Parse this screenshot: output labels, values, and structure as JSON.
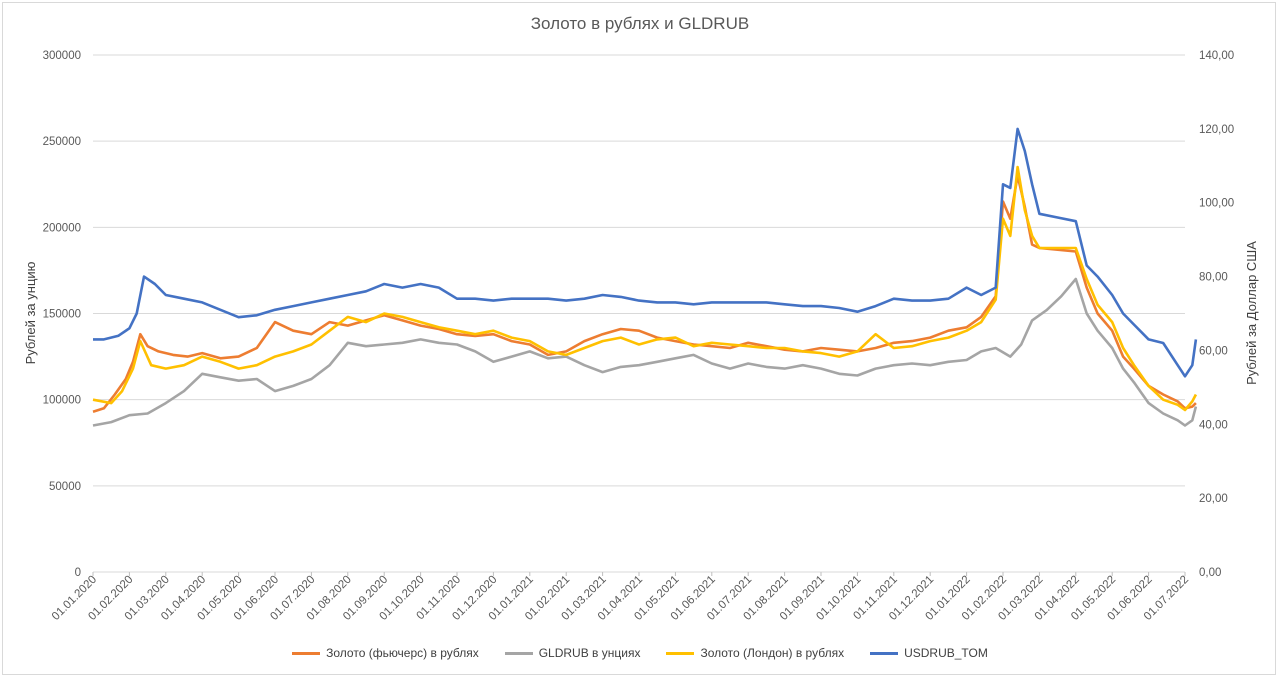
{
  "chart_data": {
    "type": "line",
    "title": "Золото в рублях и GLDRUB",
    "ylabel_left": "Рублей за унцию",
    "ylabel_right": "Рублей за Доллар США",
    "ylim_left": [
      0,
      300000
    ],
    "ylim_right": [
      0,
      140
    ],
    "left_ticks": [
      "0",
      "50000",
      "100000",
      "150000",
      "200000",
      "250000",
      "300000"
    ],
    "right_ticks": [
      "0,00",
      "20,00",
      "40,00",
      "60,00",
      "80,00",
      "100,00",
      "120,00",
      "140,00"
    ],
    "x_ticks": [
      "01.01.2020",
      "01.02.2020",
      "01.03.2020",
      "01.04.2020",
      "01.05.2020",
      "01.06.2020",
      "01.07.2020",
      "01.08.2020",
      "01.09.2020",
      "01.10.2020",
      "01.11.2020",
      "01.12.2020",
      "01.01.2021",
      "01.02.2021",
      "01.03.2021",
      "01.04.2021",
      "01.05.2021",
      "01.06.2021",
      "01.07.2021",
      "01.08.2021",
      "01.09.2021",
      "01.10.2021",
      "01.11.2021",
      "01.12.2021",
      "01.01.2022",
      "01.02.2022",
      "01.03.2022",
      "01.04.2022",
      "01.05.2022",
      "01.06.2022",
      "01.07.2022"
    ],
    "grid": "horizontal",
    "legend_position": "bottom",
    "series": [
      {
        "name": "Золото (фьючерс) в рублях",
        "axis": "left",
        "color": "#ED7D31",
        "points": [
          [
            0,
            93000
          ],
          [
            0.3,
            95000
          ],
          [
            0.6,
            103000
          ],
          [
            0.9,
            112000
          ],
          [
            1.1,
            122000
          ],
          [
            1.3,
            138000
          ],
          [
            1.5,
            131000
          ],
          [
            1.8,
            128000
          ],
          [
            2.2,
            126000
          ],
          [
            2.6,
            125000
          ],
          [
            3.0,
            127000
          ],
          [
            3.5,
            124000
          ],
          [
            4.0,
            125000
          ],
          [
            4.5,
            130000
          ],
          [
            5.0,
            145000
          ],
          [
            5.5,
            140000
          ],
          [
            6.0,
            138000
          ],
          [
            6.5,
            145000
          ],
          [
            7.0,
            143000
          ],
          [
            7.5,
            146000
          ],
          [
            8.0,
            149000
          ],
          [
            8.5,
            146000
          ],
          [
            9.0,
            143000
          ],
          [
            9.5,
            141000
          ],
          [
            10.0,
            138000
          ],
          [
            10.5,
            137000
          ],
          [
            11.0,
            138000
          ],
          [
            11.5,
            134000
          ],
          [
            12.0,
            132000
          ],
          [
            12.5,
            126000
          ],
          [
            13.0,
            128000
          ],
          [
            13.5,
            134000
          ],
          [
            14.0,
            138000
          ],
          [
            14.5,
            141000
          ],
          [
            15.0,
            140000
          ],
          [
            15.5,
            136000
          ],
          [
            16.0,
            134000
          ],
          [
            16.5,
            132000
          ],
          [
            17.0,
            131000
          ],
          [
            17.5,
            130000
          ],
          [
            18.0,
            133000
          ],
          [
            18.5,
            131000
          ],
          [
            19.0,
            129000
          ],
          [
            19.5,
            128000
          ],
          [
            20.0,
            130000
          ],
          [
            20.5,
            129000
          ],
          [
            21.0,
            128000
          ],
          [
            21.5,
            130000
          ],
          [
            22.0,
            133000
          ],
          [
            22.5,
            134000
          ],
          [
            23.0,
            136000
          ],
          [
            23.5,
            140000
          ],
          [
            24.0,
            142000
          ],
          [
            24.4,
            148000
          ],
          [
            24.8,
            160000
          ],
          [
            25.0,
            215000
          ],
          [
            25.2,
            205000
          ],
          [
            25.4,
            230000
          ],
          [
            25.6,
            212000
          ],
          [
            25.8,
            190000
          ],
          [
            26.0,
            188000
          ],
          [
            26.5,
            187000
          ],
          [
            27.0,
            186000
          ],
          [
            27.3,
            165000
          ],
          [
            27.6,
            150000
          ],
          [
            28.0,
            140000
          ],
          [
            28.3,
            125000
          ],
          [
            28.6,
            118000
          ],
          [
            29.0,
            108000
          ],
          [
            29.4,
            103000
          ],
          [
            29.8,
            99000
          ],
          [
            30.0,
            95000
          ],
          [
            30.2,
            96000
          ],
          [
            30.3,
            98000
          ]
        ]
      },
      {
        "name": "GLDRUB в унциях",
        "axis": "left",
        "color": "#A5A5A5",
        "points": [
          [
            0,
            85000
          ],
          [
            0.5,
            87000
          ],
          [
            1.0,
            91000
          ],
          [
            1.5,
            92000
          ],
          [
            2.0,
            98000
          ],
          [
            2.5,
            105000
          ],
          [
            3.0,
            115000
          ],
          [
            3.5,
            113000
          ],
          [
            4.0,
            111000
          ],
          [
            4.5,
            112000
          ],
          [
            5.0,
            105000
          ],
          [
            5.5,
            108000
          ],
          [
            6.0,
            112000
          ],
          [
            6.5,
            120000
          ],
          [
            7.0,
            133000
          ],
          [
            7.5,
            131000
          ],
          [
            8.0,
            132000
          ],
          [
            8.5,
            133000
          ],
          [
            9.0,
            135000
          ],
          [
            9.5,
            133000
          ],
          [
            10.0,
            132000
          ],
          [
            10.5,
            128000
          ],
          [
            11.0,
            122000
          ],
          [
            11.5,
            125000
          ],
          [
            12.0,
            128000
          ],
          [
            12.5,
            124000
          ],
          [
            13.0,
            125000
          ],
          [
            13.5,
            120000
          ],
          [
            14.0,
            116000
          ],
          [
            14.5,
            119000
          ],
          [
            15.0,
            120000
          ],
          [
            15.5,
            122000
          ],
          [
            16.0,
            124000
          ],
          [
            16.5,
            126000
          ],
          [
            17.0,
            121000
          ],
          [
            17.5,
            118000
          ],
          [
            18.0,
            121000
          ],
          [
            18.5,
            119000
          ],
          [
            19.0,
            118000
          ],
          [
            19.5,
            120000
          ],
          [
            20.0,
            118000
          ],
          [
            20.5,
            115000
          ],
          [
            21.0,
            114000
          ],
          [
            21.5,
            118000
          ],
          [
            22.0,
            120000
          ],
          [
            22.5,
            121000
          ],
          [
            23.0,
            120000
          ],
          [
            23.5,
            122000
          ],
          [
            24.0,
            123000
          ],
          [
            24.4,
            128000
          ],
          [
            24.8,
            130000
          ],
          [
            25.2,
            125000
          ],
          [
            25.5,
            132000
          ],
          [
            25.8,
            146000
          ],
          [
            26.2,
            152000
          ],
          [
            26.6,
            160000
          ],
          [
            27.0,
            170000
          ],
          [
            27.3,
            150000
          ],
          [
            27.6,
            140000
          ],
          [
            28.0,
            130000
          ],
          [
            28.3,
            118000
          ],
          [
            28.6,
            110000
          ],
          [
            29.0,
            98000
          ],
          [
            29.4,
            92000
          ],
          [
            29.8,
            88000
          ],
          [
            30.0,
            85000
          ],
          [
            30.2,
            88000
          ],
          [
            30.3,
            96000
          ]
        ]
      },
      {
        "name": "Золото (Лондон) в рублях",
        "axis": "left",
        "color": "#FFC000",
        "points": [
          [
            0,
            100000
          ],
          [
            0.5,
            98000
          ],
          [
            0.8,
            105000
          ],
          [
            1.1,
            118000
          ],
          [
            1.3,
            134000
          ],
          [
            1.6,
            120000
          ],
          [
            2.0,
            118000
          ],
          [
            2.5,
            120000
          ],
          [
            3.0,
            125000
          ],
          [
            3.5,
            122000
          ],
          [
            4.0,
            118000
          ],
          [
            4.5,
            120000
          ],
          [
            5.0,
            125000
          ],
          [
            5.5,
            128000
          ],
          [
            6.0,
            132000
          ],
          [
            6.5,
            140000
          ],
          [
            7.0,
            148000
          ],
          [
            7.5,
            145000
          ],
          [
            8.0,
            150000
          ],
          [
            8.5,
            148000
          ],
          [
            9.0,
            145000
          ],
          [
            9.5,
            142000
          ],
          [
            10.0,
            140000
          ],
          [
            10.5,
            138000
          ],
          [
            11.0,
            140000
          ],
          [
            11.5,
            136000
          ],
          [
            12.0,
            134000
          ],
          [
            12.5,
            128000
          ],
          [
            13.0,
            126000
          ],
          [
            13.5,
            130000
          ],
          [
            14.0,
            134000
          ],
          [
            14.5,
            136000
          ],
          [
            15.0,
            132000
          ],
          [
            15.5,
            135000
          ],
          [
            16.0,
            136000
          ],
          [
            16.5,
            131000
          ],
          [
            17.0,
            133000
          ],
          [
            17.5,
            132000
          ],
          [
            18.0,
            131000
          ],
          [
            18.5,
            130000
          ],
          [
            19.0,
            130000
          ],
          [
            19.5,
            128000
          ],
          [
            20.0,
            127000
          ],
          [
            20.5,
            125000
          ],
          [
            21.0,
            128000
          ],
          [
            21.5,
            138000
          ],
          [
            22.0,
            130000
          ],
          [
            22.5,
            131000
          ],
          [
            23.0,
            134000
          ],
          [
            23.5,
            136000
          ],
          [
            24.0,
            140000
          ],
          [
            24.4,
            145000
          ],
          [
            24.8,
            158000
          ],
          [
            25.0,
            205000
          ],
          [
            25.2,
            195000
          ],
          [
            25.4,
            235000
          ],
          [
            25.6,
            210000
          ],
          [
            25.8,
            195000
          ],
          [
            26.0,
            188000
          ],
          [
            26.5,
            188000
          ],
          [
            27.0,
            188000
          ],
          [
            27.3,
            170000
          ],
          [
            27.6,
            155000
          ],
          [
            28.0,
            145000
          ],
          [
            28.3,
            130000
          ],
          [
            28.6,
            120000
          ],
          [
            29.0,
            108000
          ],
          [
            29.4,
            100000
          ],
          [
            29.8,
            97000
          ],
          [
            30.0,
            94000
          ],
          [
            30.2,
            99000
          ],
          [
            30.3,
            103000
          ]
        ]
      },
      {
        "name": "USDRUB_TOM",
        "axis": "right",
        "color": "#4472C4",
        "points": [
          [
            0,
            63000
          ],
          [
            0.3,
            63000
          ],
          [
            0.7,
            64000
          ],
          [
            1.0,
            66000
          ],
          [
            1.2,
            70000
          ],
          [
            1.4,
            80000
          ],
          [
            1.7,
            78000
          ],
          [
            2.0,
            75000
          ],
          [
            2.5,
            74000
          ],
          [
            3.0,
            73000
          ],
          [
            3.5,
            71000
          ],
          [
            4.0,
            69000
          ],
          [
            4.5,
            69500
          ],
          [
            5.0,
            71000
          ],
          [
            5.5,
            72000
          ],
          [
            6.0,
            73000
          ],
          [
            6.5,
            74000
          ],
          [
            7.0,
            75000
          ],
          [
            7.5,
            76000
          ],
          [
            8.0,
            78000
          ],
          [
            8.5,
            77000
          ],
          [
            9.0,
            78000
          ],
          [
            9.5,
            77000
          ],
          [
            10.0,
            74000
          ],
          [
            10.5,
            74000
          ],
          [
            11.0,
            73500
          ],
          [
            11.5,
            74000
          ],
          [
            12.0,
            74000
          ],
          [
            12.5,
            74000
          ],
          [
            13.0,
            73500
          ],
          [
            13.5,
            74000
          ],
          [
            14.0,
            75000
          ],
          [
            14.5,
            74500
          ],
          [
            15.0,
            73500
          ],
          [
            15.5,
            73000
          ],
          [
            16.0,
            73000
          ],
          [
            16.5,
            72500
          ],
          [
            17.0,
            73000
          ],
          [
            17.5,
            73000
          ],
          [
            18.0,
            73000
          ],
          [
            18.5,
            73000
          ],
          [
            19.0,
            72500
          ],
          [
            19.5,
            72000
          ],
          [
            20.0,
            72000
          ],
          [
            20.5,
            71500
          ],
          [
            21.0,
            70500
          ],
          [
            21.5,
            72000
          ],
          [
            22.0,
            74000
          ],
          [
            22.5,
            73500
          ],
          [
            23.0,
            73500
          ],
          [
            23.5,
            74000
          ],
          [
            24.0,
            77000
          ],
          [
            24.4,
            75000
          ],
          [
            24.8,
            77000
          ],
          [
            25.0,
            105000
          ],
          [
            25.2,
            104000
          ],
          [
            25.4,
            120000
          ],
          [
            25.6,
            114000
          ],
          [
            25.8,
            105000
          ],
          [
            26.0,
            97000
          ],
          [
            26.5,
            96000
          ],
          [
            27.0,
            95000
          ],
          [
            27.3,
            83000
          ],
          [
            27.6,
            80000
          ],
          [
            28.0,
            75000
          ],
          [
            28.3,
            70000
          ],
          [
            28.6,
            67000
          ],
          [
            29.0,
            63000
          ],
          [
            29.4,
            62000
          ],
          [
            29.8,
            56000
          ],
          [
            30.0,
            53000
          ],
          [
            30.2,
            56000
          ],
          [
            30.3,
            63000
          ]
        ]
      }
    ]
  }
}
